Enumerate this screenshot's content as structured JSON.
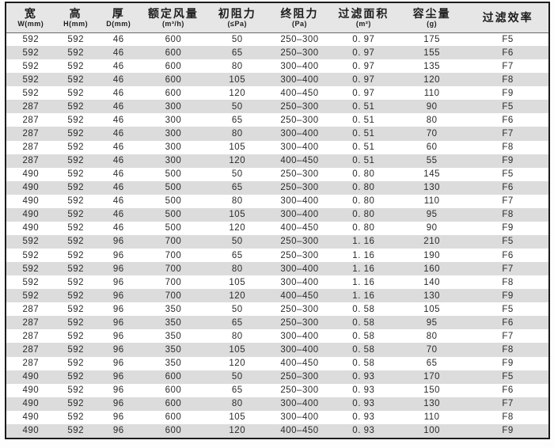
{
  "colors": {
    "frame": "#1c1c1c",
    "header_bg": "#e6e6e6",
    "stripe_bg": "#dcdcdc",
    "text": "#2b2b2b"
  },
  "table": {
    "columns": [
      {
        "id": "width",
        "title": "宽",
        "unit": "W(mm)"
      },
      {
        "id": "height",
        "title": "高",
        "unit": "H(mm)"
      },
      {
        "id": "depth",
        "title": "厚",
        "unit": "D(mm)"
      },
      {
        "id": "rated-airflow",
        "title": "额定风量",
        "unit": "(m³/h)"
      },
      {
        "id": "initial-resistance",
        "title": "初阻力",
        "unit": "(≤Pa)"
      },
      {
        "id": "final-resistance",
        "title": "终阻力",
        "unit": "(Pa)"
      },
      {
        "id": "filter-area",
        "title": "过滤面积",
        "unit": "(m²)"
      },
      {
        "id": "dust-capacity",
        "title": "容尘量",
        "unit": "(g)"
      },
      {
        "id": "efficiency",
        "title": "过滤效率",
        "unit": ""
      }
    ],
    "rows": [
      [
        "592",
        "592",
        "46",
        "600",
        "50",
        "250–300",
        "0. 97",
        "175",
        "F5"
      ],
      [
        "592",
        "592",
        "46",
        "600",
        "65",
        "250–300",
        "0. 97",
        "155",
        "F6"
      ],
      [
        "592",
        "592",
        "46",
        "600",
        "80",
        "300–400",
        "0. 97",
        "135",
        "F7"
      ],
      [
        "592",
        "592",
        "46",
        "600",
        "105",
        "300–400",
        "0. 97",
        "120",
        "F8"
      ],
      [
        "592",
        "592",
        "46",
        "600",
        "120",
        "400–450",
        "0. 97",
        "110",
        "F9"
      ],
      [
        "287",
        "592",
        "46",
        "300",
        "50",
        "250–300",
        "0. 51",
        "90",
        "F5"
      ],
      [
        "287",
        "592",
        "46",
        "300",
        "65",
        "250–300",
        "0. 51",
        "80",
        "F6"
      ],
      [
        "287",
        "592",
        "46",
        "300",
        "80",
        "300–400",
        "0. 51",
        "70",
        "F7"
      ],
      [
        "287",
        "592",
        "46",
        "300",
        "105",
        "300–400",
        "0. 51",
        "60",
        "F8"
      ],
      [
        "287",
        "592",
        "46",
        "300",
        "120",
        "400–450",
        "0. 51",
        "55",
        "F9"
      ],
      [
        "490",
        "592",
        "46",
        "500",
        "50",
        "250–300",
        "0. 80",
        "145",
        "F5"
      ],
      [
        "490",
        "592",
        "46",
        "500",
        "65",
        "250–300",
        "0. 80",
        "130",
        "F6"
      ],
      [
        "490",
        "592",
        "46",
        "500",
        "80",
        "300–400",
        "0. 80",
        "110",
        "F7"
      ],
      [
        "490",
        "592",
        "46",
        "500",
        "105",
        "300–400",
        "0. 80",
        "95",
        "F8"
      ],
      [
        "490",
        "592",
        "46",
        "500",
        "120",
        "400–450",
        "0. 80",
        "90",
        "F9"
      ],
      [
        "592",
        "592",
        "96",
        "700",
        "50",
        "250–300",
        "1. 16",
        "210",
        "F5"
      ],
      [
        "592",
        "592",
        "96",
        "700",
        "65",
        "250–300",
        "1. 16",
        "190",
        "F6"
      ],
      [
        "592",
        "592",
        "96",
        "700",
        "80",
        "300–400",
        "1. 16",
        "160",
        "F7"
      ],
      [
        "592",
        "592",
        "96",
        "700",
        "105",
        "300–400",
        "1. 16",
        "140",
        "F8"
      ],
      [
        "592",
        "592",
        "96",
        "700",
        "120",
        "400–450",
        "1. 16",
        "130",
        "F9"
      ],
      [
        "287",
        "592",
        "96",
        "350",
        "50",
        "250–300",
        "0. 58",
        "105",
        "F5"
      ],
      [
        "287",
        "592",
        "96",
        "350",
        "65",
        "250–300",
        "0. 58",
        "95",
        "F6"
      ],
      [
        "287",
        "592",
        "96",
        "350",
        "80",
        "300–400",
        "0. 58",
        "80",
        "F7"
      ],
      [
        "287",
        "592",
        "96",
        "350",
        "105",
        "300–400",
        "0. 58",
        "70",
        "F8"
      ],
      [
        "287",
        "592",
        "96",
        "350",
        "120",
        "400–450",
        "0. 58",
        "65",
        "F9"
      ],
      [
        "490",
        "592",
        "96",
        "600",
        "50",
        "250–300",
        "0. 93",
        "170",
        "F5"
      ],
      [
        "490",
        "592",
        "96",
        "600",
        "65",
        "250–300",
        "0. 93",
        "150",
        "F6"
      ],
      [
        "490",
        "592",
        "96",
        "600",
        "80",
        "300–400",
        "0. 93",
        "130",
        "F7"
      ],
      [
        "490",
        "592",
        "96",
        "600",
        "105",
        "300–400",
        "0. 93",
        "110",
        "F8"
      ],
      [
        "490",
        "592",
        "96",
        "600",
        "120",
        "400–450",
        "0. 93",
        "100",
        "F9"
      ]
    ]
  }
}
